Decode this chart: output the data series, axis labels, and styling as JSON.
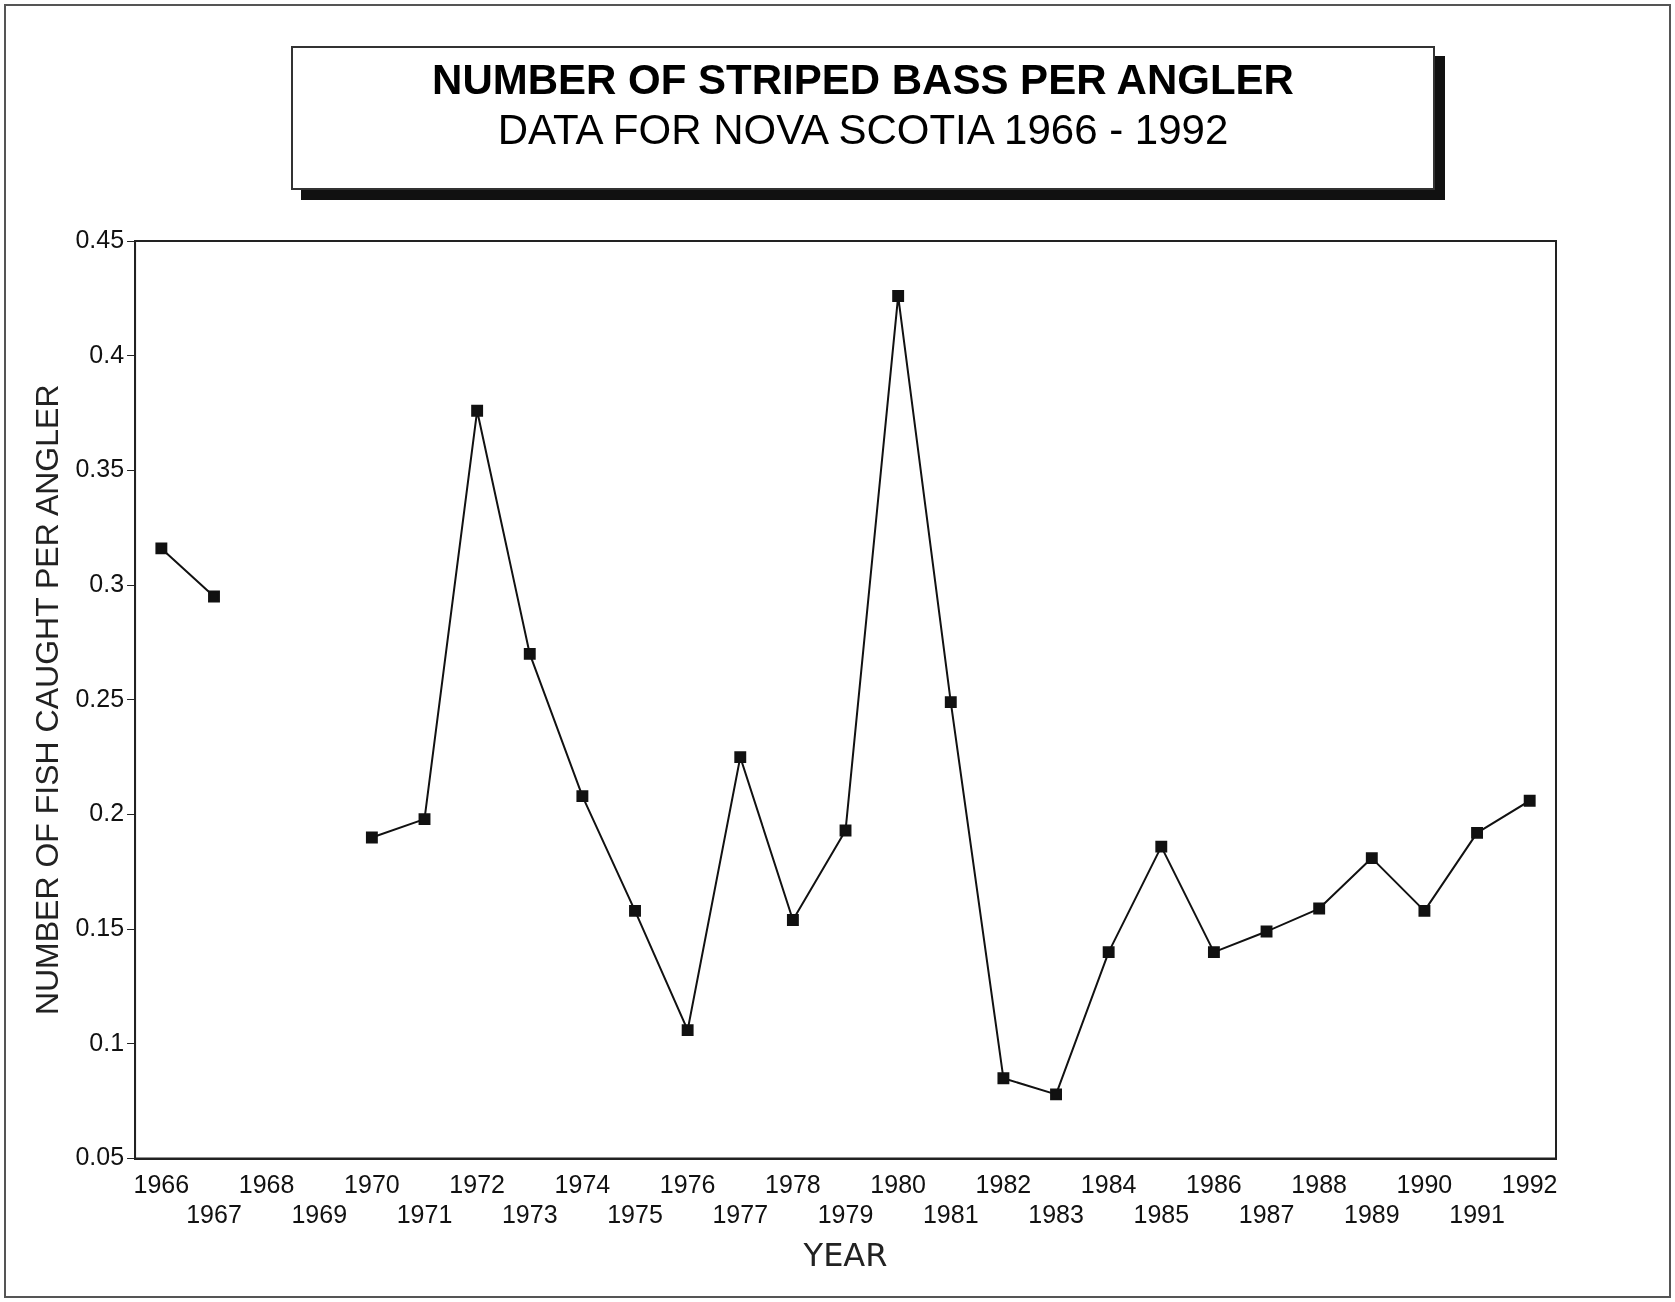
{
  "chart_data": {
    "type": "line",
    "title": "NUMBER OF STRIPED BASS PER ANGLER",
    "subtitle": "DATA FOR NOVA SCOTIA 1966 - 1992",
    "xlabel": "YEAR",
    "ylabel": "NUMBER OF FISH CAUGHT PER ANGLER",
    "categories": [
      "1966",
      "1967",
      "1968",
      "1969",
      "1970",
      "1971",
      "1972",
      "1973",
      "1974",
      "1975",
      "1976",
      "1977",
      "1978",
      "1979",
      "1980",
      "1981",
      "1982",
      "1983",
      "1984",
      "1985",
      "1986",
      "1987",
      "1988",
      "1989",
      "1990",
      "1991",
      "1992"
    ],
    "series": [
      {
        "color": "#111111",
        "values": [
          0.316,
          0.295,
          null,
          null,
          0.19,
          0.198,
          0.376,
          0.27,
          0.208,
          0.158,
          0.106,
          0.225,
          0.154,
          0.193,
          0.426,
          0.249,
          0.085,
          0.078,
          0.14,
          0.186,
          0.14,
          0.149,
          0.159,
          0.181,
          0.158,
          0.192,
          0.206
        ]
      }
    ],
    "ylim": [
      0.05,
      0.45
    ],
    "yticks": [
      0.05,
      0.1,
      0.15,
      0.2,
      0.25,
      0.3,
      0.35,
      0.4,
      0.45
    ],
    "grid": false,
    "legend": false,
    "marker": "square",
    "line_style": "solid"
  }
}
